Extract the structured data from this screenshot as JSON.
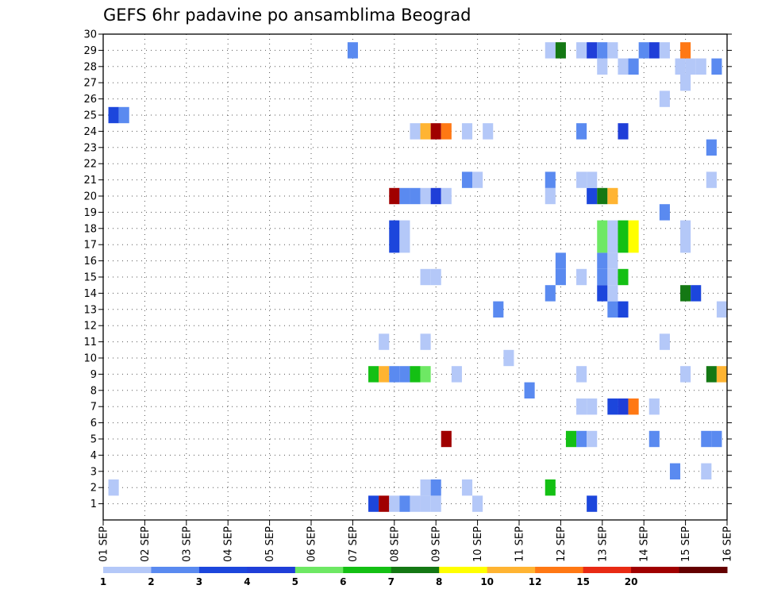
{
  "chart_data": {
    "type": "heatmap",
    "title": "GEFS 6hr padavine po ansamblima Beograd",
    "y_ticks": [
      "1",
      "2",
      "3",
      "4",
      "5",
      "6",
      "7",
      "8",
      "9",
      "10",
      "11",
      "12",
      "13",
      "14",
      "15",
      "16",
      "17",
      "18",
      "19",
      "20",
      "21",
      "22",
      "23",
      "24",
      "25",
      "26",
      "27",
      "28",
      "29",
      "30"
    ],
    "x_ticks": [
      "01 SEP",
      "02 SEP",
      "03 SEP",
      "04 SEP",
      "05 SEP",
      "06 SEP",
      "07 SEP",
      "08 SEP",
      "09 SEP",
      "10 SEP",
      "11 SEP",
      "12 SEP",
      "13 SEP",
      "14 SEP",
      "15 SEP",
      "16 SEP"
    ],
    "xlim_days": [
      1,
      16
    ],
    "ylim_members": [
      0,
      30
    ],
    "grid": true,
    "step_hours": 6,
    "colorbar": {
      "levels": [
        "1",
        "2",
        "3",
        "4",
        "5",
        "6",
        "7",
        "8",
        "10",
        "12",
        "15",
        "20"
      ],
      "colors": [
        "#b4c8f8",
        "#5a8af0",
        "#1c46dc",
        "#1f3ed8",
        "#6ee864",
        "#14c014",
        "#147814",
        "#ffff00",
        "#ffb432",
        "#ff7814",
        "#e82a14",
        "#a00000",
        "#640000"
      ]
    },
    "cells": [
      {
        "member": 1,
        "day": 7.5,
        "value": 3
      },
      {
        "member": 1,
        "day": 7.75,
        "value": 25
      },
      {
        "member": 1,
        "day": 8.0,
        "value": 1
      },
      {
        "member": 1,
        "day": 8.25,
        "value": 2
      },
      {
        "member": 1,
        "day": 8.5,
        "value": 1
      },
      {
        "member": 1,
        "day": 8.75,
        "value": 1
      },
      {
        "member": 1,
        "day": 9.0,
        "value": 1
      },
      {
        "member": 1,
        "day": 10.0,
        "value": 1
      },
      {
        "member": 1,
        "day": 12.75,
        "value": 3
      },
      {
        "member": 2,
        "day": 1.25,
        "value": 1
      },
      {
        "member": 2,
        "day": 8.75,
        "value": 1
      },
      {
        "member": 2,
        "day": 9.0,
        "value": 2
      },
      {
        "member": 2,
        "day": 9.75,
        "value": 1
      },
      {
        "member": 2,
        "day": 11.75,
        "value": 6
      },
      {
        "member": 3,
        "day": 14.75,
        "value": 2
      },
      {
        "member": 3,
        "day": 15.5,
        "value": 1
      },
      {
        "member": 5,
        "day": 9.25,
        "value": 20
      },
      {
        "member": 5,
        "day": 12.25,
        "value": 6
      },
      {
        "member": 5,
        "day": 12.5,
        "value": 2
      },
      {
        "member": 5,
        "day": 12.75,
        "value": 1
      },
      {
        "member": 5,
        "day": 14.25,
        "value": 2
      },
      {
        "member": 5,
        "day": 15.5,
        "value": 2
      },
      {
        "member": 5,
        "day": 15.75,
        "value": 2
      },
      {
        "member": 7,
        "day": 12.5,
        "value": 1
      },
      {
        "member": 7,
        "day": 12.75,
        "value": 1
      },
      {
        "member": 7,
        "day": 13.25,
        "value": 3
      },
      {
        "member": 7,
        "day": 13.5,
        "value": 4
      },
      {
        "member": 7,
        "day": 13.75,
        "value": 12
      },
      {
        "member": 7,
        "day": 14.25,
        "value": 1
      },
      {
        "member": 8,
        "day": 11.25,
        "value": 2
      },
      {
        "member": 9,
        "day": 7.5,
        "value": 6
      },
      {
        "member": 9,
        "day": 7.75,
        "value": 10
      },
      {
        "member": 9,
        "day": 8.0,
        "value": 2
      },
      {
        "member": 9,
        "day": 8.25,
        "value": 2
      },
      {
        "member": 9,
        "day": 8.5,
        "value": 6
      },
      {
        "member": 9,
        "day": 8.75,
        "value": 5
      },
      {
        "member": 9,
        "day": 9.5,
        "value": 1
      },
      {
        "member": 9,
        "day": 12.5,
        "value": 1
      },
      {
        "member": 9,
        "day": 15.0,
        "value": 1
      },
      {
        "member": 9,
        "day": 15.625,
        "value": 7
      },
      {
        "member": 9,
        "day": 15.875,
        "value": 10
      },
      {
        "member": 10,
        "day": 10.75,
        "value": 0
      },
      {
        "member": 11,
        "day": 7.75,
        "value": 1
      },
      {
        "member": 11,
        "day": 8.75,
        "value": 1
      },
      {
        "member": 11,
        "day": 14.5,
        "value": 1
      },
      {
        "member": 13,
        "day": 10.5,
        "value": 2
      },
      {
        "member": 13,
        "day": 13.25,
        "value": 2
      },
      {
        "member": 13,
        "day": 13.5,
        "value": 3
      },
      {
        "member": 13,
        "day": 15.875,
        "value": 1
      },
      {
        "member": 14,
        "day": 11.75,
        "value": 2
      },
      {
        "member": 14,
        "day": 13.0,
        "value": 3
      },
      {
        "member": 14,
        "day": 13.25,
        "value": 1
      },
      {
        "member": 14,
        "day": 15.0,
        "value": 7
      },
      {
        "member": 14,
        "day": 15.25,
        "value": 3
      },
      {
        "member": 15,
        "day": 8.75,
        "value": 1
      },
      {
        "member": 15,
        "day": 9.0,
        "value": 1
      },
      {
        "member": 15,
        "day": 12.0,
        "value": 2
      },
      {
        "member": 15,
        "day": 12.5,
        "value": 1
      },
      {
        "member": 15,
        "day": 13.0,
        "value": 2
      },
      {
        "member": 15,
        "day": 13.25,
        "value": 1
      },
      {
        "member": 15,
        "day": 13.5,
        "value": 6
      },
      {
        "member": 16,
        "day": 12.0,
        "value": 2
      },
      {
        "member": 16,
        "day": 13.0,
        "value": 2
      },
      {
        "member": 16,
        "day": 13.25,
        "value": 1
      },
      {
        "member": 17,
        "day": 8.0,
        "value": 3
      },
      {
        "member": 17,
        "day": 8.25,
        "value": 1
      },
      {
        "member": 17,
        "day": 13.0,
        "value": 5
      },
      {
        "member": 17,
        "day": 13.25,
        "value": 1
      },
      {
        "member": 17,
        "day": 13.5,
        "value": 6
      },
      {
        "member": 17,
        "day": 13.75,
        "value": 8
      },
      {
        "member": 17,
        "day": 15.0,
        "value": 1
      },
      {
        "member": 18,
        "day": 8.0,
        "value": 3
      },
      {
        "member": 18,
        "day": 8.25,
        "value": 1
      },
      {
        "member": 18,
        "day": 13.0,
        "value": 5
      },
      {
        "member": 18,
        "day": 13.25,
        "value": 1
      },
      {
        "member": 18,
        "day": 13.5,
        "value": 6
      },
      {
        "member": 18,
        "day": 13.75,
        "value": 8
      },
      {
        "member": 18,
        "day": 15.0,
        "value": 1
      },
      {
        "member": 19,
        "day": 14.5,
        "value": 2
      },
      {
        "member": 20,
        "day": 8.0,
        "value": 25
      },
      {
        "member": 20,
        "day": 8.25,
        "value": 2
      },
      {
        "member": 20,
        "day": 8.5,
        "value": 2
      },
      {
        "member": 20,
        "day": 8.75,
        "value": 1
      },
      {
        "member": 20,
        "day": 9.0,
        "value": 4
      },
      {
        "member": 20,
        "day": 9.25,
        "value": 1
      },
      {
        "member": 20,
        "day": 11.75,
        "value": 1
      },
      {
        "member": 20,
        "day": 12.75,
        "value": 3
      },
      {
        "member": 20,
        "day": 13.0,
        "value": 7
      },
      {
        "member": 20,
        "day": 13.25,
        "value": 10
      },
      {
        "member": 21,
        "day": 9.75,
        "value": 2
      },
      {
        "member": 21,
        "day": 10.0,
        "value": 1
      },
      {
        "member": 21,
        "day": 11.75,
        "value": 2
      },
      {
        "member": 21,
        "day": 12.5,
        "value": 1
      },
      {
        "member": 21,
        "day": 12.75,
        "value": 1
      },
      {
        "member": 21,
        "day": 15.625,
        "value": 1
      },
      {
        "member": 23,
        "day": 15.625,
        "value": 2
      },
      {
        "member": 24,
        "day": 8.5,
        "value": 1
      },
      {
        "member": 24,
        "day": 8.75,
        "value": 10
      },
      {
        "member": 24,
        "day": 9.0,
        "value": 25
      },
      {
        "member": 24,
        "day": 9.25,
        "value": 12
      },
      {
        "member": 24,
        "day": 9.75,
        "value": 1
      },
      {
        "member": 24,
        "day": 10.25,
        "value": 1
      },
      {
        "member": 24,
        "day": 12.5,
        "value": 2
      },
      {
        "member": 24,
        "day": 13.5,
        "value": 4
      },
      {
        "member": 25,
        "day": 1.25,
        "value": 3
      },
      {
        "member": 25,
        "day": 1.5,
        "value": 2
      },
      {
        "member": 26,
        "day": 14.5,
        "value": 1
      },
      {
        "member": 27,
        "day": 15.0,
        "value": 1
      },
      {
        "member": 28,
        "day": 13.0,
        "value": 1
      },
      {
        "member": 28,
        "day": 13.5,
        "value": 1
      },
      {
        "member": 28,
        "day": 13.75,
        "value": 2
      },
      {
        "member": 28,
        "day": 14.875,
        "value": 1
      },
      {
        "member": 28,
        "day": 15.125,
        "value": 1
      },
      {
        "member": 28,
        "day": 15.375,
        "value": 1
      },
      {
        "member": 28,
        "day": 15.75,
        "value": 2
      },
      {
        "member": 29,
        "day": 7.0,
        "value": 2
      },
      {
        "member": 29,
        "day": 11.75,
        "value": 1
      },
      {
        "member": 29,
        "day": 12.0,
        "value": 7
      },
      {
        "member": 29,
        "day": 12.5,
        "value": 1
      },
      {
        "member": 29,
        "day": 12.75,
        "value": 4
      },
      {
        "member": 29,
        "day": 13.0,
        "value": 2
      },
      {
        "member": 29,
        "day": 13.25,
        "value": 1
      },
      {
        "member": 29,
        "day": 14.0,
        "value": 2
      },
      {
        "member": 29,
        "day": 14.25,
        "value": 4
      },
      {
        "member": 29,
        "day": 14.5,
        "value": 1
      },
      {
        "member": 29,
        "day": 15.0,
        "value": 12
      }
    ]
  }
}
